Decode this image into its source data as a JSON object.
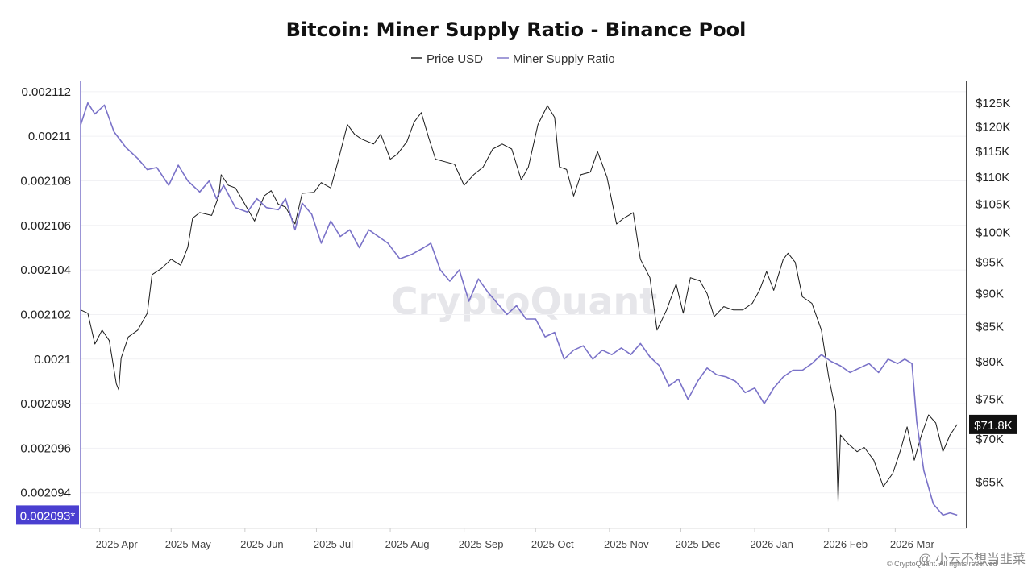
{
  "chart_data": {
    "type": "line",
    "title": "Bitcoin: Miner Supply Ratio - Binance Pool",
    "legend": {
      "placement": "top-center",
      "items": [
        {
          "label": "Price USD",
          "color": "#1a1a1a"
        },
        {
          "label": "Miner Supply Ratio",
          "color": "#7a72c8"
        }
      ]
    },
    "watermark": "CryptoQuant",
    "copyright": "© CryptoQuant. All rights reserved",
    "footer_text": "@ 小云不想当韭菜",
    "x_axis": {
      "type": "date",
      "range": [
        "2025-03-24",
        "2026-03-31"
      ],
      "ticks": [
        {
          "date": "2025-04-01",
          "label": "2025 Apr"
        },
        {
          "date": "2025-05-01",
          "label": "2025 May"
        },
        {
          "date": "2025-06-01",
          "label": "2025 Jun"
        },
        {
          "date": "2025-07-01",
          "label": "2025 Jul"
        },
        {
          "date": "2025-08-01",
          "label": "2025 Aug"
        },
        {
          "date": "2025-09-01",
          "label": "2025 Sep"
        },
        {
          "date": "2025-10-01",
          "label": "2025 Oct"
        },
        {
          "date": "2025-11-01",
          "label": "2025 Nov"
        },
        {
          "date": "2025-12-01",
          "label": "2025 Dec"
        },
        {
          "date": "2026-01-01",
          "label": "2026 Jan"
        },
        {
          "date": "2026-02-01",
          "label": "2026 Feb"
        },
        {
          "date": "2026-03-01",
          "label": "2026 Mar"
        }
      ]
    },
    "y_left": {
      "ylim": [
        0.0020924,
        0.0021125
      ],
      "ticks": [
        0.002094,
        0.002096,
        0.002098,
        0.0021,
        0.002102,
        0.002104,
        0.002106,
        0.002108,
        0.00211,
        0.002112
      ],
      "tick_labels": [
        "0.002094",
        "0.002096",
        "0.002098",
        "0.0021",
        "0.002102",
        "0.002104",
        "0.002106",
        "0.002108",
        "0.00211",
        "0.002112"
      ],
      "current_label": "0.002093*",
      "current_value": 0.002093,
      "grid": true
    },
    "y_right": {
      "scale": "log",
      "ylim": [
        60000,
        130000
      ],
      "ticks": [
        65000,
        70000,
        75000,
        80000,
        85000,
        90000,
        95000,
        100000,
        105000,
        110000,
        115000,
        120000,
        125000
      ],
      "tick_labels": [
        "$65K",
        "$70K",
        "$75K",
        "$80K",
        "$85K",
        "$90K",
        "$95K",
        "$100K",
        "$105K",
        "$110K",
        "$115K",
        "$120K",
        "$125K"
      ],
      "current_label": "$71.8K",
      "current_value": 71800
    },
    "series": [
      {
        "name": "Price USD",
        "axis": "right",
        "color": "#1a1a1a",
        "points": [
          [
            "2025-03-24",
            87500
          ],
          [
            "2025-03-27",
            87000
          ],
          [
            "2025-03-30",
            82500
          ],
          [
            "2025-04-02",
            84500
          ],
          [
            "2025-04-05",
            83000
          ],
          [
            "2025-04-08",
            77000
          ],
          [
            "2025-04-09",
            76200
          ],
          [
            "2025-04-10",
            80500
          ],
          [
            "2025-04-13",
            83500
          ],
          [
            "2025-04-17",
            84500
          ],
          [
            "2025-04-21",
            87000
          ],
          [
            "2025-04-23",
            93000
          ],
          [
            "2025-04-27",
            94000
          ],
          [
            "2025-05-01",
            95500
          ],
          [
            "2025-05-05",
            94500
          ],
          [
            "2025-05-08",
            97500
          ],
          [
            "2025-05-10",
            102500
          ],
          [
            "2025-05-13",
            103500
          ],
          [
            "2025-05-18",
            103000
          ],
          [
            "2025-05-21",
            106500
          ],
          [
            "2025-05-22",
            110500
          ],
          [
            "2025-05-25",
            108500
          ],
          [
            "2025-05-28",
            108000
          ],
          [
            "2025-06-01",
            105000
          ],
          [
            "2025-06-05",
            102000
          ],
          [
            "2025-06-09",
            106500
          ],
          [
            "2025-06-12",
            107500
          ],
          [
            "2025-06-15",
            105000
          ],
          [
            "2025-06-18",
            104500
          ],
          [
            "2025-06-22",
            101500
          ],
          [
            "2025-06-25",
            107000
          ],
          [
            "2025-06-30",
            107200
          ],
          [
            "2025-07-03",
            109000
          ],
          [
            "2025-07-07",
            108000
          ],
          [
            "2025-07-10",
            113000
          ],
          [
            "2025-07-14",
            120500
          ],
          [
            "2025-07-17",
            118500
          ],
          [
            "2025-07-20",
            117500
          ],
          [
            "2025-07-25",
            116500
          ],
          [
            "2025-07-28",
            118500
          ],
          [
            "2025-08-01",
            113500
          ],
          [
            "2025-08-04",
            114500
          ],
          [
            "2025-08-08",
            117000
          ],
          [
            "2025-08-11",
            121000
          ],
          [
            "2025-08-14",
            123000
          ],
          [
            "2025-08-17",
            118000
          ],
          [
            "2025-08-20",
            113500
          ],
          [
            "2025-08-24",
            113000
          ],
          [
            "2025-08-28",
            112500
          ],
          [
            "2025-09-01",
            108500
          ],
          [
            "2025-09-05",
            110500
          ],
          [
            "2025-09-09",
            112000
          ],
          [
            "2025-09-13",
            115500
          ],
          [
            "2025-09-17",
            116500
          ],
          [
            "2025-09-21",
            115500
          ],
          [
            "2025-09-25",
            109500
          ],
          [
            "2025-09-28",
            112000
          ],
          [
            "2025-10-02",
            120500
          ],
          [
            "2025-10-06",
            124500
          ],
          [
            "2025-10-09",
            122000
          ],
          [
            "2025-10-11",
            112000
          ],
          [
            "2025-10-14",
            111500
          ],
          [
            "2025-10-17",
            106500
          ],
          [
            "2025-10-20",
            110500
          ],
          [
            "2025-10-24",
            111000
          ],
          [
            "2025-10-27",
            115000
          ],
          [
            "2025-10-31",
            110000
          ],
          [
            "2025-11-04",
            101500
          ],
          [
            "2025-11-07",
            102500
          ],
          [
            "2025-11-11",
            103500
          ],
          [
            "2025-11-14",
            95500
          ],
          [
            "2025-11-18",
            92500
          ],
          [
            "2025-11-21",
            84500
          ],
          [
            "2025-11-25",
            87500
          ],
          [
            "2025-11-29",
            91500
          ],
          [
            "2025-12-02",
            87000
          ],
          [
            "2025-12-05",
            92500
          ],
          [
            "2025-12-09",
            92000
          ],
          [
            "2025-12-12",
            90000
          ],
          [
            "2025-12-15",
            86500
          ],
          [
            "2025-12-19",
            88000
          ],
          [
            "2025-12-23",
            87500
          ],
          [
            "2025-12-27",
            87500
          ],
          [
            "2025-12-31",
            88500
          ],
          [
            "2026-01-03",
            90500
          ],
          [
            "2026-01-06",
            93500
          ],
          [
            "2026-01-09",
            90500
          ],
          [
            "2026-01-13",
            95500
          ],
          [
            "2026-01-15",
            96500
          ],
          [
            "2026-01-18",
            95000
          ],
          [
            "2026-01-21",
            89500
          ],
          [
            "2026-01-25",
            88500
          ],
          [
            "2026-01-29",
            84500
          ],
          [
            "2026-02-01",
            78000
          ],
          [
            "2026-02-04",
            73500
          ],
          [
            "2026-02-05",
            62800
          ],
          [
            "2026-02-06",
            70500
          ],
          [
            "2026-02-09",
            69500
          ],
          [
            "2026-02-13",
            68500
          ],
          [
            "2026-02-16",
            69000
          ],
          [
            "2026-02-20",
            67500
          ],
          [
            "2026-02-24",
            64500
          ],
          [
            "2026-02-28",
            66000
          ],
          [
            "2026-03-03",
            68500
          ],
          [
            "2026-03-06",
            71500
          ],
          [
            "2026-03-09",
            67500
          ],
          [
            "2026-03-12",
            70500
          ],
          [
            "2026-03-15",
            73000
          ],
          [
            "2026-03-18",
            72000
          ],
          [
            "2026-03-21",
            68500
          ],
          [
            "2026-03-24",
            70500
          ],
          [
            "2026-03-27",
            71800
          ]
        ]
      },
      {
        "name": "Miner Supply Ratio",
        "axis": "left",
        "color": "#7a72c8",
        "points": [
          [
            "2025-03-24",
            0.0021105
          ],
          [
            "2025-03-27",
            0.0021115
          ],
          [
            "2025-03-30",
            0.002111
          ],
          [
            "2025-04-03",
            0.0021114
          ],
          [
            "2025-04-07",
            0.0021102
          ],
          [
            "2025-04-12",
            0.0021095
          ],
          [
            "2025-04-17",
            0.002109
          ],
          [
            "2025-04-21",
            0.0021085
          ],
          [
            "2025-04-25",
            0.0021086
          ],
          [
            "2025-04-30",
            0.0021078
          ],
          [
            "2025-05-04",
            0.0021087
          ],
          [
            "2025-05-08",
            0.002108
          ],
          [
            "2025-05-13",
            0.0021075
          ],
          [
            "2025-05-17",
            0.002108
          ],
          [
            "2025-05-20",
            0.0021072
          ],
          [
            "2025-05-23",
            0.0021078
          ],
          [
            "2025-05-28",
            0.0021068
          ],
          [
            "2025-06-02",
            0.0021066
          ],
          [
            "2025-06-06",
            0.0021072
          ],
          [
            "2025-06-10",
            0.0021068
          ],
          [
            "2025-06-15",
            0.0021067
          ],
          [
            "2025-06-18",
            0.0021072
          ],
          [
            "2025-06-22",
            0.0021058
          ],
          [
            "2025-06-25",
            0.002107
          ],
          [
            "2025-06-29",
            0.0021065
          ],
          [
            "2025-07-03",
            0.0021052
          ],
          [
            "2025-07-07",
            0.0021062
          ],
          [
            "2025-07-11",
            0.0021055
          ],
          [
            "2025-07-15",
            0.0021058
          ],
          [
            "2025-07-19",
            0.002105
          ],
          [
            "2025-07-23",
            0.0021058
          ],
          [
            "2025-07-27",
            0.0021055
          ],
          [
            "2025-07-31",
            0.0021052
          ],
          [
            "2025-08-05",
            0.0021045
          ],
          [
            "2025-08-10",
            0.0021047
          ],
          [
            "2025-08-15",
            0.002105
          ],
          [
            "2025-08-18",
            0.0021052
          ],
          [
            "2025-08-22",
            0.002104
          ],
          [
            "2025-08-26",
            0.0021035
          ],
          [
            "2025-08-30",
            0.002104
          ],
          [
            "2025-09-03",
            0.0021026
          ],
          [
            "2025-09-07",
            0.0021036
          ],
          [
            "2025-09-11",
            0.002103
          ],
          [
            "2025-09-15",
            0.0021025
          ],
          [
            "2025-09-19",
            0.002102
          ],
          [
            "2025-09-23",
            0.0021024
          ],
          [
            "2025-09-27",
            0.0021018
          ],
          [
            "2025-10-01",
            0.0021018
          ],
          [
            "2025-10-05",
            0.002101
          ],
          [
            "2025-10-09",
            0.0021012
          ],
          [
            "2025-10-13",
            0.0021
          ],
          [
            "2025-10-17",
            0.0021004
          ],
          [
            "2025-10-21",
            0.0021006
          ],
          [
            "2025-10-25",
            0.0021
          ],
          [
            "2025-10-29",
            0.0021004
          ],
          [
            "2025-11-02",
            0.0021002
          ],
          [
            "2025-11-06",
            0.0021005
          ],
          [
            "2025-11-10",
            0.0021002
          ],
          [
            "2025-11-14",
            0.0021007
          ],
          [
            "2025-11-18",
            0.0021001
          ],
          [
            "2025-11-22",
            0.0020997
          ],
          [
            "2025-11-26",
            0.0020988
          ],
          [
            "2025-11-30",
            0.0020991
          ],
          [
            "2025-12-04",
            0.0020982
          ],
          [
            "2025-12-08",
            0.002099
          ],
          [
            "2025-12-12",
            0.0020996
          ],
          [
            "2025-12-16",
            0.0020993
          ],
          [
            "2025-12-20",
            0.0020992
          ],
          [
            "2025-12-24",
            0.002099
          ],
          [
            "2025-12-28",
            0.0020985
          ],
          [
            "2026-01-01",
            0.0020987
          ],
          [
            "2026-01-05",
            0.002098
          ],
          [
            "2026-01-09",
            0.0020987
          ],
          [
            "2026-01-13",
            0.0020992
          ],
          [
            "2026-01-17",
            0.0020995
          ],
          [
            "2026-01-21",
            0.0020995
          ],
          [
            "2026-01-25",
            0.0020998
          ],
          [
            "2026-01-29",
            0.0021002
          ],
          [
            "2026-02-02",
            0.0020999
          ],
          [
            "2026-02-06",
            0.0020997
          ],
          [
            "2026-02-10",
            0.0020994
          ],
          [
            "2026-02-14",
            0.0020996
          ],
          [
            "2026-02-18",
            0.0020998
          ],
          [
            "2026-02-22",
            0.0020994
          ],
          [
            "2026-02-26",
            0.0021
          ],
          [
            "2026-03-02",
            0.0020998
          ],
          [
            "2026-03-05",
            0.0021
          ],
          [
            "2026-03-08",
            0.0020998
          ],
          [
            "2026-03-10",
            0.0020972
          ],
          [
            "2026-03-13",
            0.002095
          ],
          [
            "2026-03-17",
            0.0020935
          ],
          [
            "2026-03-21",
            0.002093
          ],
          [
            "2026-03-24",
            0.0020931
          ],
          [
            "2026-03-27",
            0.002093
          ]
        ]
      }
    ]
  }
}
